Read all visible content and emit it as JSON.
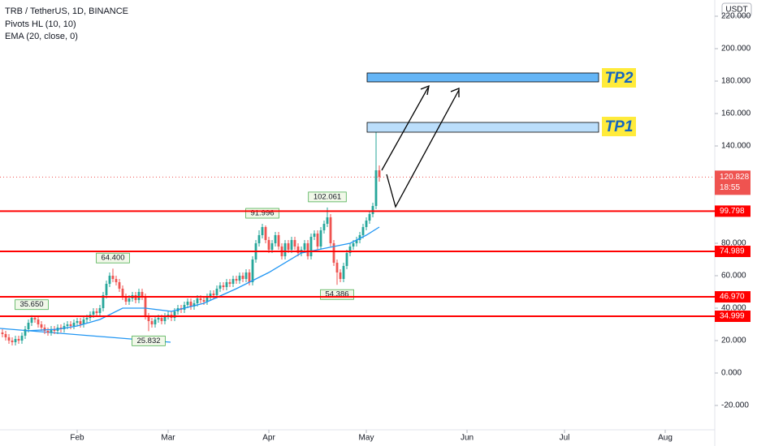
{
  "chart_data": {
    "type": "candlestick",
    "title": "TRB / TetherUS, 1D, BINANCE",
    "indicators": [
      "Pivots HL (10, 10)",
      "EMA (20, close, 0)"
    ],
    "currency": "USDT",
    "xlim": [
      7.25,
      227.25
    ],
    "ylim": [
      -35,
      230
    ],
    "grid": false,
    "up_color": "#26a69a",
    "down_color": "#ef5350",
    "xticks": [
      {
        "value": 31,
        "label": "Feb"
      },
      {
        "value": 59,
        "label": "Mar"
      },
      {
        "value": 90,
        "label": "Apr"
      },
      {
        "value": 120,
        "label": "May"
      },
      {
        "value": 151,
        "label": "Jun"
      },
      {
        "value": 181,
        "label": "Jul"
      },
      {
        "value": 212,
        "label": "Aug"
      }
    ],
    "yticks": [
      {
        "value": 220,
        "label": "220.000"
      },
      {
        "value": 200,
        "label": "200.000"
      },
      {
        "value": 180,
        "label": "180.000"
      },
      {
        "value": 160,
        "label": "160.000"
      },
      {
        "value": 140,
        "label": "140.000"
      },
      {
        "value": 80,
        "label": "80.000"
      },
      {
        "value": 60,
        "label": "60.000"
      },
      {
        "value": 40,
        "label": "40.000"
      },
      {
        "value": 20,
        "label": "20.000"
      },
      {
        "value": 0,
        "label": "0.000"
      },
      {
        "value": -20,
        "label": "-20.000"
      }
    ],
    "x": [
      8,
      9,
      10,
      11,
      12,
      13,
      14,
      15,
      16,
      17,
      18,
      19,
      20,
      21,
      22,
      23,
      24,
      25,
      26,
      27,
      28,
      29,
      30,
      31,
      32,
      33,
      34,
      35,
      36,
      37,
      38,
      39,
      40,
      41,
      42,
      43,
      44,
      45,
      46,
      47,
      48,
      49,
      50,
      51,
      52,
      53,
      54,
      55,
      56,
      57,
      58,
      59,
      60,
      61,
      62,
      63,
      64,
      65,
      66,
      67,
      68,
      69,
      70,
      71,
      72,
      73,
      74,
      75,
      76,
      77,
      78,
      79,
      80,
      81,
      82,
      83,
      84,
      85,
      86,
      87,
      88,
      89,
      90,
      91,
      92,
      93,
      94,
      95,
      96,
      97,
      98,
      99,
      100,
      101,
      102,
      103,
      104,
      105,
      106,
      107,
      108,
      109,
      110,
      111,
      112,
      113,
      114,
      115,
      116,
      117,
      118,
      119,
      120,
      121,
      122,
      123,
      124
    ],
    "candles": [
      [
        25,
        27,
        22,
        24
      ],
      [
        24,
        26,
        20,
        22
      ],
      [
        22,
        24,
        18,
        20
      ],
      [
        20,
        22,
        17,
        19
      ],
      [
        19,
        23,
        17,
        21
      ],
      [
        21,
        23,
        18,
        20
      ],
      [
        20,
        25,
        18,
        23
      ],
      [
        23,
        29,
        21,
        27
      ],
      [
        27,
        33,
        25,
        31
      ],
      [
        31,
        35.65,
        29,
        34
      ],
      [
        34,
        35,
        31,
        33
      ],
      [
        33,
        35,
        28,
        30
      ],
      [
        30,
        32,
        26,
        28
      ],
      [
        28,
        30,
        24,
        26
      ],
      [
        26,
        28,
        23,
        25
      ],
      [
        25,
        29,
        23,
        27
      ],
      [
        27,
        29,
        24,
        26
      ],
      [
        26,
        30,
        24,
        28
      ],
      [
        28,
        30,
        25,
        27
      ],
      [
        27,
        31,
        25,
        29
      ],
      [
        29,
        32,
        27,
        30
      ],
      [
        30,
        32,
        27,
        29
      ],
      [
        29,
        33,
        27,
        31
      ],
      [
        31,
        34,
        29,
        32
      ],
      [
        32,
        34,
        28,
        30
      ],
      [
        30,
        35,
        28,
        33
      ],
      [
        33,
        36,
        31,
        34
      ],
      [
        34,
        38,
        32,
        36
      ],
      [
        36,
        40,
        34,
        38
      ],
      [
        38,
        40,
        35,
        37
      ],
      [
        37,
        42,
        35,
        40
      ],
      [
        40,
        50,
        38,
        48
      ],
      [
        48,
        57,
        46,
        55
      ],
      [
        55,
        62,
        53,
        60
      ],
      [
        60,
        64.4,
        56,
        58
      ],
      [
        58,
        60,
        54,
        56
      ],
      [
        56,
        58,
        50,
        52
      ],
      [
        52,
        54,
        45,
        47
      ],
      [
        47,
        49,
        42,
        44
      ],
      [
        44,
        48,
        42,
        46
      ],
      [
        46,
        50,
        44,
        48
      ],
      [
        48,
        50,
        43,
        45
      ],
      [
        45,
        52,
        43,
        50
      ],
      [
        50,
        52,
        45,
        47
      ],
      [
        47,
        49,
        33,
        35
      ],
      [
        35,
        37,
        25.832,
        32
      ],
      [
        32,
        34,
        28,
        30
      ],
      [
        30,
        35,
        28,
        33
      ],
      [
        33,
        36,
        31,
        34
      ],
      [
        34,
        36,
        30,
        32
      ],
      [
        32,
        37,
        30,
        35
      ],
      [
        35,
        38,
        33,
        36
      ],
      [
        36,
        38,
        32,
        34
      ],
      [
        34,
        40,
        32,
        38
      ],
      [
        38,
        42,
        36,
        40
      ],
      [
        40,
        42,
        37,
        39
      ],
      [
        39,
        44,
        37,
        42
      ],
      [
        42,
        46,
        40,
        44
      ],
      [
        44,
        46,
        39,
        41
      ],
      [
        41,
        45,
        39,
        43
      ],
      [
        43,
        48,
        41,
        46
      ],
      [
        46,
        48,
        43,
        45
      ],
      [
        45,
        47,
        42,
        44
      ],
      [
        44,
        49,
        42,
        47
      ],
      [
        47,
        51,
        45,
        49
      ],
      [
        49,
        51,
        46,
        48
      ],
      [
        48,
        54,
        46,
        52
      ],
      [
        52,
        56,
        50,
        54
      ],
      [
        54,
        56,
        51,
        53
      ],
      [
        53,
        58,
        51,
        56
      ],
      [
        56,
        58,
        53,
        55
      ],
      [
        55,
        60,
        53,
        58
      ],
      [
        58,
        60,
        55,
        57
      ],
      [
        57,
        62,
        55,
        60
      ],
      [
        60,
        62,
        56,
        58
      ],
      [
        58,
        64,
        56,
        62
      ],
      [
        62,
        64,
        54,
        56
      ],
      [
        56,
        72,
        54,
        70
      ],
      [
        70,
        82,
        68,
        80
      ],
      [
        80,
        88,
        78,
        85
      ],
      [
        85,
        91.996,
        83,
        90
      ],
      [
        90,
        91,
        80,
        82
      ],
      [
        82,
        84,
        74,
        76
      ],
      [
        76,
        82,
        74,
        80
      ],
      [
        80,
        87,
        78,
        85
      ],
      [
        85,
        87,
        76,
        78
      ],
      [
        78,
        80,
        70,
        72
      ],
      [
        72,
        82,
        70,
        80
      ],
      [
        80,
        82,
        74,
        76
      ],
      [
        76,
        84,
        74,
        82
      ],
      [
        82,
        84,
        76,
        78
      ],
      [
        78,
        80,
        72,
        74
      ],
      [
        74,
        78,
        72,
        76
      ],
      [
        76,
        82,
        74,
        80
      ],
      [
        80,
        82,
        70,
        72
      ],
      [
        72,
        86,
        70,
        84
      ],
      [
        84,
        88,
        82,
        86
      ],
      [
        86,
        88,
        76,
        78
      ],
      [
        78,
        90,
        76,
        88
      ],
      [
        88,
        94,
        86,
        92
      ],
      [
        92,
        102.061,
        90,
        96
      ],
      [
        96,
        98,
        78,
        80
      ],
      [
        80,
        82,
        66,
        68
      ],
      [
        68,
        70,
        54.386,
        62
      ],
      [
        62,
        64,
        56,
        58
      ],
      [
        58,
        68,
        56,
        66
      ],
      [
        66,
        76,
        64,
        74
      ],
      [
        74,
        80,
        72,
        78
      ],
      [
        78,
        82,
        76,
        80
      ],
      [
        80,
        84,
        78,
        82
      ],
      [
        82,
        87,
        80,
        85
      ],
      [
        85,
        92,
        83,
        90
      ],
      [
        90,
        96,
        88,
        94
      ],
      [
        94,
        100,
        92,
        98
      ],
      [
        98,
        105,
        96,
        103
      ],
      [
        103,
        152,
        101,
        125
      ],
      [
        125,
        128,
        118,
        120.828
      ]
    ],
    "ema": {
      "color": "#2196f3",
      "x": [
        15,
        25,
        31,
        38,
        45,
        52,
        60,
        70,
        80,
        90,
        100,
        110,
        115,
        120,
        124
      ],
      "values": [
        26,
        27,
        29,
        33,
        40,
        40,
        38,
        43,
        52,
        62,
        74,
        78,
        80,
        85,
        90
      ]
    },
    "trendline": {
      "color": "#2196f3",
      "x": [
        7.25,
        59.75
      ],
      "values": [
        27.5,
        19
      ]
    },
    "pivot_highs": [
      {
        "x": 17,
        "value": 35.65,
        "label": "35.650"
      },
      {
        "x": 42,
        "value": 64.4,
        "label": "64.400"
      },
      {
        "x": 88,
        "value": 91.996,
        "label": "91.996"
      },
      {
        "x": 108,
        "value": 102.061,
        "label": "102.061"
      }
    ],
    "pivot_lows": [
      {
        "x": 53,
        "value": 25.832,
        "label": "25.832"
      },
      {
        "x": 111,
        "value": 54.386,
        "label": "54.386"
      }
    ],
    "levels": {
      "color": "#ff0000",
      "items": [
        {
          "value": 99.798,
          "label": "99.798"
        },
        {
          "value": 74.989,
          "label": "74.989"
        },
        {
          "value": 46.97,
          "label": "46.970"
        },
        {
          "value": 34.999,
          "label": "34.999"
        }
      ]
    },
    "last_price": {
      "value": 120.828,
      "label": "120.828",
      "countdown": "18:55"
    },
    "annotations": [
      "TP1",
      "TP2"
    ]
  }
}
